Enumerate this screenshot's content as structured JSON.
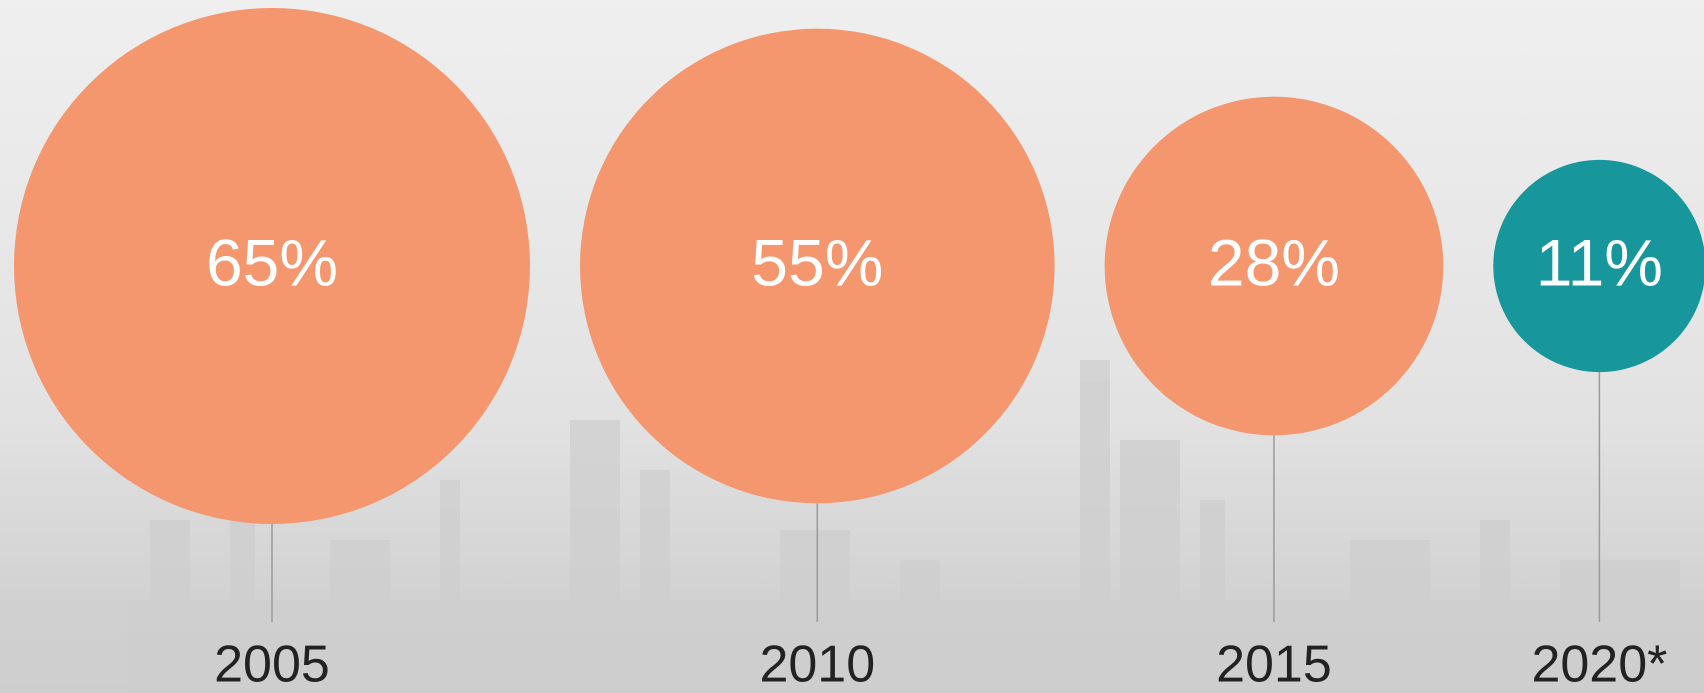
{
  "chart_data": {
    "type": "bubble",
    "categories": [
      "2005",
      "2010",
      "2015",
      "2020*"
    ],
    "values": [
      65,
      55,
      28,
      11
    ],
    "value_labels": [
      "65%",
      "55%",
      "28%",
      "11%"
    ],
    "colors": [
      "#f4976f",
      "#f4976f",
      "#f4976f",
      "#17979b"
    ]
  }
}
